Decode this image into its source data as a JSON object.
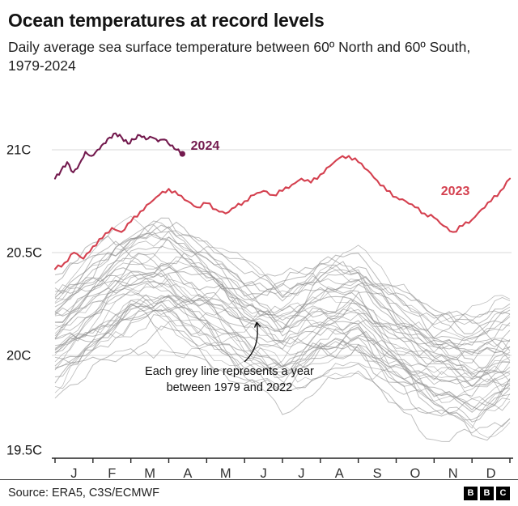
{
  "header": {
    "title": "Ocean temperatures at record levels",
    "subtitle": "Daily average sea surface temperature between 60º North and 60º South, 1979-2024"
  },
  "footer": {
    "source": "Source: ERA5, C3S/ECMWF",
    "logo_letters": [
      "B",
      "B",
      "C"
    ]
  },
  "chart_data": {
    "type": "line",
    "title": "Ocean temperatures at record levels",
    "ylim": [
      19.5,
      21.15
    ],
    "grid": true,
    "y_ticks": [
      {
        "value": 21.0,
        "label": "21C",
        "gridline": true
      },
      {
        "value": 20.5,
        "label": "20.5C",
        "gridline": true
      },
      {
        "value": 20.0,
        "label": "20C",
        "gridline": true
      },
      {
        "value": 19.5,
        "label": "19.5C",
        "gridline": false
      }
    ],
    "x_tick_labels": [
      "J",
      "F",
      "M",
      "A",
      "M",
      "J",
      "J",
      "A",
      "S",
      "O",
      "N",
      "D"
    ],
    "series": [
      {
        "name": "2024",
        "color": "#731a4e",
        "x_start": 0,
        "x_step": 0.16,
        "values": [
          20.86,
          20.9,
          20.94,
          20.89,
          20.93,
          20.99,
          20.97,
          21.0,
          21.03,
          21.06,
          21.08,
          21.06,
          21.03,
          21.05,
          21.07,
          21.05,
          21.06,
          21.04,
          21.05,
          21.02,
          21.0,
          20.98
        ],
        "end_dot": true,
        "label": "2024",
        "label_m": 3.58,
        "label_v": 21.02
      },
      {
        "name": "2023",
        "color": "#d4404f",
        "x_start": 0,
        "x_step": 0.25,
        "values": [
          20.42,
          20.45,
          20.5,
          20.47,
          20.53,
          20.57,
          20.62,
          20.6,
          20.65,
          20.7,
          20.74,
          20.78,
          20.81,
          20.78,
          20.75,
          20.72,
          20.74,
          20.71,
          20.69,
          20.72,
          20.75,
          20.78,
          20.8,
          20.78,
          20.8,
          20.83,
          20.86,
          20.84,
          20.88,
          20.92,
          20.96,
          20.97,
          20.94,
          20.9,
          20.85,
          20.8,
          20.77,
          20.75,
          20.72,
          20.69,
          20.67,
          20.63,
          20.6,
          20.63,
          20.66,
          20.71,
          20.75,
          20.8,
          20.86
        ],
        "end_dot": false,
        "label": "2023",
        "label_m": 10.18,
        "label_v": 20.8
      }
    ],
    "grey_ensemble": {
      "description": "One grey line per year, 1979-2022",
      "first_year": 1979,
      "last_year": 2022,
      "count": 44,
      "color": "#8f8f8f",
      "opacity": 0.6,
      "seed": 7,
      "x_step": 0.2,
      "monthly_climatology": [
        20.18,
        20.3,
        20.42,
        20.44,
        20.34,
        20.22,
        20.16,
        20.24,
        20.28,
        20.14,
        20.02,
        19.98,
        20.06
      ],
      "trend_start_offset": -0.34,
      "trend_end_offset": 0.2,
      "wiggle_amp": 0.07,
      "noise_amp": 0.022,
      "min_value": 19.55,
      "max_value": 20.76
    },
    "annotation": {
      "lines": [
        "Each grey line represents a year",
        "between 1979 and 2022"
      ],
      "text_m": 4.6,
      "text_v": 19.906,
      "line_spacing_px": 20,
      "arrow_from_m": 5.0,
      "arrow_from_v": 19.969,
      "arrow_to_m": 5.32,
      "arrow_to_v": 20.161
    }
  }
}
